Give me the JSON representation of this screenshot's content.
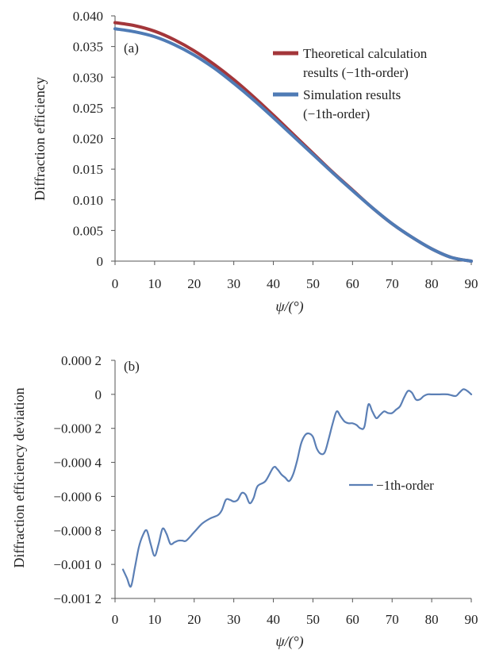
{
  "chart_data": [
    {
      "type": "line",
      "panel_label": "(a)",
      "xlabel": "ψ/(°)",
      "ylabel": "Diffraction efficiency",
      "xlim": [
        0,
        90
      ],
      "ylim": [
        0,
        0.04
      ],
      "x_ticks": [
        0,
        10,
        20,
        30,
        40,
        50,
        60,
        70,
        80,
        90
      ],
      "x_tick_labels": [
        "0",
        "10",
        "20",
        "30",
        "40",
        "50",
        "60",
        "70",
        "80",
        "90"
      ],
      "y_ticks": [
        0,
        0.005,
        0.01,
        0.015,
        0.02,
        0.025,
        0.03,
        0.035,
        0.04
      ],
      "y_tick_labels": [
        "0",
        "0.005",
        "0.010",
        "0.015",
        "0.020",
        "0.025",
        "0.030",
        "0.035",
        "0.040"
      ],
      "grid": false,
      "legend_position": "top-right",
      "series": [
        {
          "name": "Theoretical calculation results (−1th-order)",
          "legend_lines": [
            "Theoretical calculation",
            "results (−1th-order)"
          ],
          "color": "#a3363a",
          "x": [
            0,
            5,
            10,
            15,
            20,
            25,
            30,
            35,
            40,
            45,
            50,
            55,
            60,
            65,
            70,
            75,
            80,
            85,
            90
          ],
          "y": [
            0.0389,
            0.0384,
            0.0375,
            0.0361,
            0.0343,
            0.0321,
            0.0296,
            0.0268,
            0.0238,
            0.0207,
            0.0176,
            0.0145,
            0.0116,
            0.0087,
            0.0061,
            0.0039,
            0.002,
            0.0006,
            0.0
          ]
        },
        {
          "name": "Simulation results (−1th-order)",
          "legend_lines": [
            "Simulation results",
            "(−1th-order)"
          ],
          "color": "#4f7bb5",
          "x": [
            0,
            5,
            10,
            15,
            20,
            25,
            30,
            35,
            40,
            45,
            50,
            55,
            60,
            65,
            70,
            75,
            80,
            85,
            90
          ],
          "y": [
            0.0379,
            0.0374,
            0.0366,
            0.0353,
            0.0336,
            0.0315,
            0.029,
            0.0263,
            0.0234,
            0.0204,
            0.0174,
            0.0144,
            0.0115,
            0.0087,
            0.0061,
            0.0039,
            0.002,
            0.0006,
            0.0
          ]
        }
      ]
    },
    {
      "type": "line",
      "panel_label": "(b)",
      "xlabel": "ψ/(°)",
      "ylabel": "Diffraction efficiency deviation",
      "xlim": [
        0,
        90
      ],
      "ylim": [
        -0.0012,
        0.0002
      ],
      "x_ticks": [
        0,
        10,
        20,
        30,
        40,
        50,
        60,
        70,
        80,
        90
      ],
      "x_tick_labels": [
        "0",
        "10",
        "20",
        "30",
        "40",
        "50",
        "60",
        "70",
        "80",
        "90"
      ],
      "y_ticks": [
        0.0002,
        0,
        -0.0002,
        -0.0004,
        -0.0006,
        -0.0008,
        -0.001,
        -0.0012
      ],
      "y_tick_labels": [
        "0.000 2",
        "0",
        "−0.000 2",
        "−0.000 4",
        "−0.000 6",
        "−0.000 8",
        "−0.001 0",
        "−0.001 2"
      ],
      "grid": false,
      "legend_position": "center-right",
      "series": [
        {
          "name": "−1th-order",
          "color": "#5b7fb5",
          "x": [
            2,
            3,
            4,
            5,
            6,
            7,
            8,
            9,
            10,
            11,
            12,
            13,
            14,
            15,
            16,
            17,
            18,
            20,
            22,
            24,
            26,
            27,
            28,
            29,
            30,
            31,
            32,
            33,
            34,
            35,
            36,
            38,
            40,
            41,
            42,
            43,
            44,
            45,
            46,
            47,
            48,
            49,
            50,
            51,
            52,
            53,
            54,
            55,
            56,
            57,
            58,
            59,
            60,
            61,
            62,
            63,
            64,
            65,
            66,
            67,
            68,
            69,
            70,
            71,
            72,
            73,
            74,
            75,
            76,
            77,
            78,
            79,
            80,
            82,
            84,
            86,
            87,
            88,
            89,
            90
          ],
          "y": [
            -0.00103,
            -0.00108,
            -0.00113,
            -0.00102,
            -0.0009,
            -0.00083,
            -0.0008,
            -0.00088,
            -0.00095,
            -0.00088,
            -0.00079,
            -0.00082,
            -0.00088,
            -0.00087,
            -0.00086,
            -0.00086,
            -0.00086,
            -0.00081,
            -0.00076,
            -0.00073,
            -0.00071,
            -0.00068,
            -0.00062,
            -0.00062,
            -0.00063,
            -0.00062,
            -0.00058,
            -0.00059,
            -0.00064,
            -0.00061,
            -0.00054,
            -0.00051,
            -0.00043,
            -0.00044,
            -0.00047,
            -0.00049,
            -0.00051,
            -0.00047,
            -0.00039,
            -0.00029,
            -0.00024,
            -0.00023,
            -0.00025,
            -0.00032,
            -0.00035,
            -0.00034,
            -0.00026,
            -0.00017,
            -0.0001,
            -0.00013,
            -0.00016,
            -0.00017,
            -0.00017,
            -0.00018,
            -0.0002,
            -0.00019,
            -6e-05,
            -0.0001,
            -0.00014,
            -0.00012,
            -0.0001,
            -0.00011,
            -0.00011,
            -9e-05,
            -7e-05,
            -2e-05,
            2e-05,
            1e-05,
            -3e-05,
            -3e-05,
            -1e-05,
            0.0,
            0.0,
            0.0,
            0.0,
            -1e-05,
            1e-05,
            3e-05,
            2e-05,
            0.0
          ]
        }
      ]
    }
  ]
}
